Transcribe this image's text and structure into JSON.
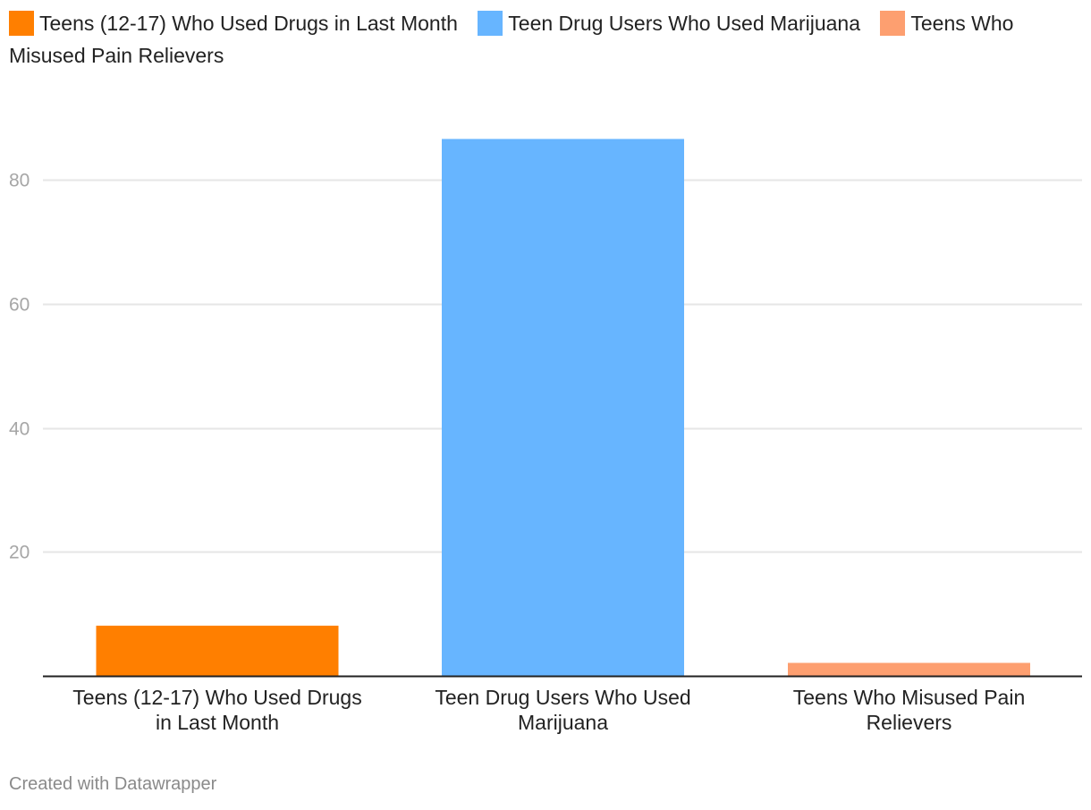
{
  "chart_data": {
    "type": "bar",
    "categories": [
      [
        "Teens (12-17) Who Used Drugs",
        "in Last Month"
      ],
      [
        "Teen Drug Users Who Used",
        "Marijuana"
      ],
      [
        "Teens Who Misused Pain",
        "Relievers"
      ]
    ],
    "values": [
      8.1,
      86.6,
      2.1
    ],
    "colors": [
      "#ff7f00",
      "#67b5ff",
      "#fd9f70"
    ],
    "legend": [
      {
        "label": "Teens (12-17) Who Used Drugs in Last Month",
        "color": "#ff7f00"
      },
      {
        "label": "Teen Drug Users Who Used Marijuana",
        "color": "#67b5ff"
      },
      {
        "label": "Teens Who Misused Pain Relievers",
        "color": "#fd9f70"
      }
    ],
    "legend_position": "top-left",
    "yticks": [
      20,
      40,
      60,
      80
    ],
    "ylim": [
      0,
      95
    ],
    "grid": true,
    "title": "",
    "xlabel": "",
    "ylabel": ""
  },
  "footer": {
    "credit": "Created with Datawrapper"
  }
}
